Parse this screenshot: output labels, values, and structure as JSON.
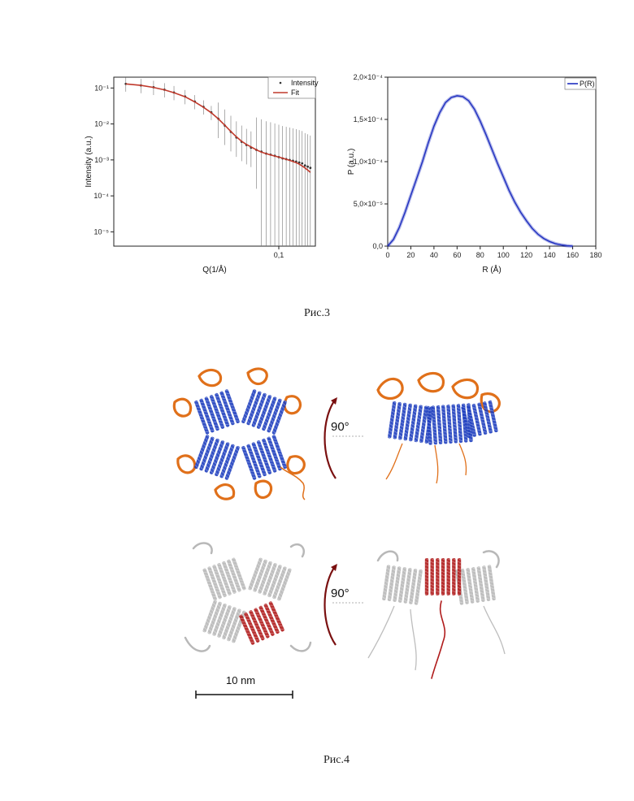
{
  "figures": {
    "fig3_caption": "Рис.3",
    "fig4_caption": "Рис.4",
    "rotation_top": "90°",
    "rotation_bottom": "90°",
    "scale_bar": "10 nm"
  },
  "colors": {
    "intensity_points": "#333333",
    "fit_line": "#c0392b",
    "pr_line": "#1f2fbf",
    "helix_blue": "#1f3fbf",
    "domain_orange": "#e0701a",
    "gray_structure": "#b8b8b8",
    "highlight_red": "#b01c1c",
    "arrow_red": "#7a1010"
  },
  "chart_data": [
    {
      "type": "scatter",
      "xlabel": "Q(1/Å)",
      "ylabel": "Intensity (a.u.)",
      "xscale": "log",
      "yscale": "log",
      "xlim": [
        0.012,
        0.16
      ],
      "ylim": [
        4e-06,
        0.2
      ],
      "x_tick_labels": [
        "0,1"
      ],
      "x_ticks": [
        0.1
      ],
      "y_tick_labels": [
        "10⁻¹",
        "10⁻²",
        "10⁻³",
        "10⁻⁴",
        "10⁻⁵"
      ],
      "y_ticks": [
        0.1,
        0.01,
        0.001,
        0.0001,
        1e-05
      ],
      "legend_position": "top-right",
      "series": [
        {
          "name": "Intensity",
          "style": "points-with-errorbars",
          "x": [
            0.014,
            0.017,
            0.02,
            0.023,
            0.026,
            0.03,
            0.034,
            0.038,
            0.042,
            0.046,
            0.05,
            0.054,
            0.058,
            0.062,
            0.066,
            0.07,
            0.075,
            0.08,
            0.085,
            0.09,
            0.095,
            0.1,
            0.105,
            0.11,
            0.115,
            0.12,
            0.125,
            0.13,
            0.135,
            0.14,
            0.145,
            0.15
          ],
          "y": [
            0.13,
            0.118,
            0.105,
            0.09,
            0.075,
            0.058,
            0.042,
            0.03,
            0.021,
            0.014,
            0.009,
            0.006,
            0.0042,
            0.0032,
            0.0026,
            0.0022,
            0.0019,
            0.0017,
            0.0015,
            0.0014,
            0.0013,
            0.0012,
            0.0011,
            0.00105,
            0.001,
            0.00095,
            0.0009,
            0.00085,
            0.0008,
            0.0007,
            0.00065,
            0.0006
          ]
        },
        {
          "name": "Fit",
          "style": "line",
          "x": [
            0.014,
            0.017,
            0.02,
            0.023,
            0.026,
            0.03,
            0.034,
            0.038,
            0.042,
            0.046,
            0.05,
            0.054,
            0.058,
            0.062,
            0.066,
            0.07,
            0.075,
            0.08,
            0.085,
            0.09,
            0.095,
            0.1,
            0.105,
            0.11,
            0.115,
            0.12,
            0.125,
            0.13,
            0.135,
            0.14,
            0.145,
            0.15
          ],
          "y": [
            0.13,
            0.118,
            0.104,
            0.089,
            0.074,
            0.057,
            0.041,
            0.029,
            0.0205,
            0.0138,
            0.0092,
            0.0062,
            0.0044,
            0.0033,
            0.0027,
            0.0023,
            0.0019,
            0.00165,
            0.0015,
            0.00138,
            0.00128,
            0.0012,
            0.00112,
            0.00104,
            0.00097,
            0.0009,
            0.00084,
            0.00076,
            0.00068,
            0.0006,
            0.00052,
            0.00045
          ]
        }
      ]
    },
    {
      "type": "line",
      "xlabel": "R (Å)",
      "ylabel": "P (a.u.)",
      "xlim": [
        0,
        180
      ],
      "ylim": [
        0,
        0.0002
      ],
      "x_ticks": [
        0,
        20,
        40,
        60,
        80,
        100,
        120,
        140,
        160,
        180
      ],
      "x_tick_labels": [
        "0",
        "20",
        "40",
        "60",
        "80",
        "100",
        "120",
        "140",
        "160",
        "180"
      ],
      "y_ticks": [
        0,
        5e-05,
        0.0001,
        0.00015,
        0.0002
      ],
      "y_tick_labels": [
        "0,0",
        "5,0×10⁻⁵",
        "1,0×10⁻⁴",
        "1,5×10⁻⁴",
        "2,0×10⁻⁴"
      ],
      "legend_position": "top-right",
      "series": [
        {
          "name": "P(R)",
          "x": [
            0,
            5,
            10,
            15,
            20,
            25,
            30,
            35,
            40,
            45,
            50,
            55,
            60,
            65,
            70,
            75,
            80,
            85,
            90,
            95,
            100,
            105,
            110,
            115,
            120,
            125,
            130,
            135,
            140,
            145,
            150,
            155,
            160
          ],
          "y": [
            0,
            8e-06,
            2.2e-05,
            4e-05,
            6e-05,
            8e-05,
            0.0001,
            0.000122,
            0.000142,
            0.000158,
            0.00017,
            0.000176,
            0.000178,
            0.000177,
            0.000172,
            0.000162,
            0.000148,
            0.000132,
            0.000115,
            9.8e-05,
            8.2e-05,
            6.6e-05,
            5.2e-05,
            4e-05,
            3e-05,
            2.1e-05,
            1.4e-05,
            9e-06,
            5.5e-06,
            3e-06,
            1.5e-06,
            5e-07,
            0
          ]
        }
      ]
    }
  ]
}
